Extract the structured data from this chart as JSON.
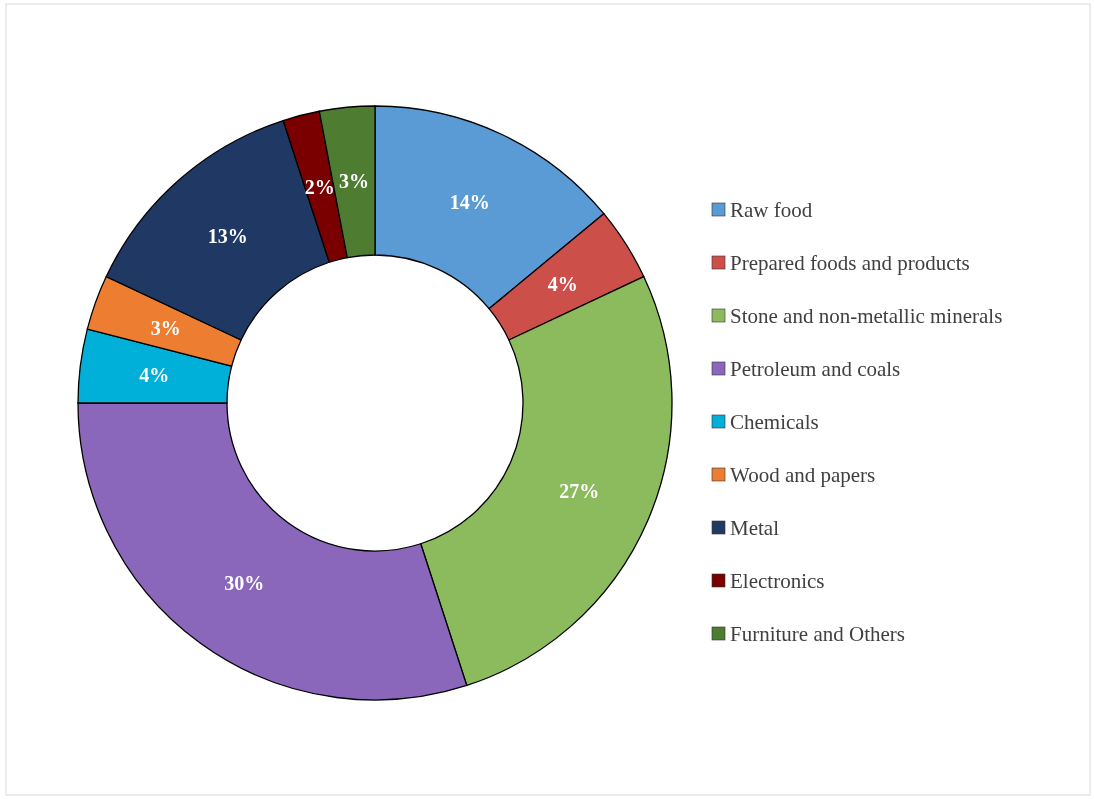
{
  "chart_data": {
    "type": "donut",
    "categories": [
      "Raw food",
      "Prepared foods and products",
      "Stone and non-metallic minerals",
      "Petroleum and coals",
      "Chemicals",
      "Wood and papers",
      "Metal",
      "Electronics",
      "Furniture and Others"
    ],
    "values": [
      14,
      4,
      27,
      30,
      4,
      3,
      13,
      2,
      3
    ],
    "value_labels": [
      "14%",
      "4%",
      "27%",
      "30%",
      "4%",
      "3%",
      "13%",
      "2%",
      "3%"
    ],
    "colors": [
      "#5b9bd5",
      "#cd4f4a",
      "#8cbb5e",
      "#8a67bb",
      "#00b0d8",
      "#ed7d31",
      "#1f3864",
      "#7a0000",
      "#4e7d32"
    ],
    "legend": "right"
  }
}
